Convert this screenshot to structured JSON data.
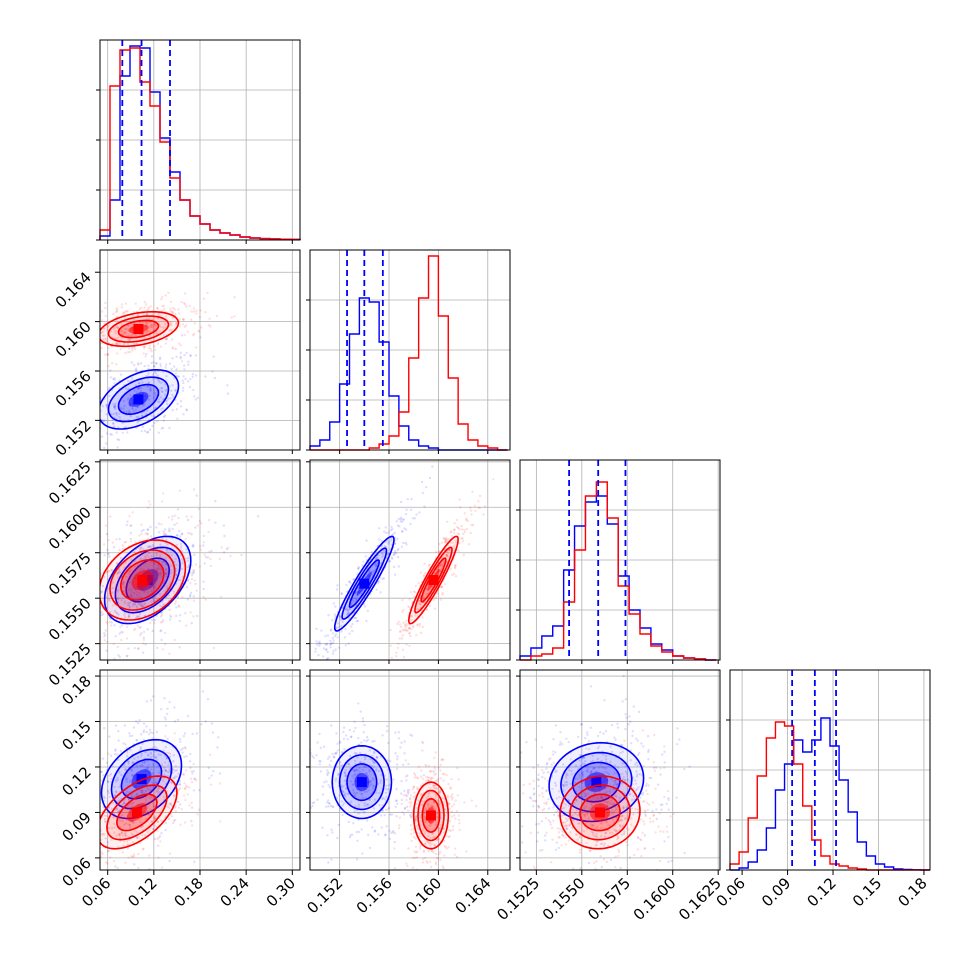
{
  "chart_data": {
    "type": "corner",
    "grid": true,
    "colors": {
      "series_a": "#0000ff",
      "series_b": "#ff0000"
    },
    "parameters": [
      {
        "ticks": [
          0.06,
          0.12,
          0.18,
          0.24,
          0.3
        ],
        "tick_labels": [
          "0.06",
          "0.12",
          "0.18",
          "0.24",
          "0.30"
        ],
        "range": [
          0.05,
          0.31
        ]
      },
      {
        "ticks": [
          0.152,
          0.156,
          0.16,
          0.164
        ],
        "tick_labels": [
          "0.152",
          "0.156",
          "0.160",
          "0.164"
        ],
        "range": [
          0.1496,
          0.1658
        ]
      },
      {
        "ticks": [
          0.1525,
          0.155,
          0.1575,
          0.16,
          0.1625
        ],
        "tick_labels": [
          "0.1525",
          "0.1550",
          "0.1575",
          "0.1600",
          "0.1625"
        ],
        "range": [
          0.1516,
          0.1626
        ]
      },
      {
        "ticks": [
          0.06,
          0.09,
          0.12,
          0.15,
          0.18
        ],
        "tick_labels": [
          "0.06",
          "0.09",
          "0.12",
          "0.15",
          "0.18"
        ],
        "range": [
          0.052,
          0.184
        ]
      }
    ],
    "diagonal": [
      {
        "bins": [
          0.05,
          0.063,
          0.076,
          0.089,
          0.102,
          0.115,
          0.128,
          0.141,
          0.154,
          0.167,
          0.18,
          0.193,
          0.206,
          0.219,
          0.232,
          0.245,
          0.258,
          0.271,
          0.284,
          0.297,
          0.31
        ],
        "series_a": [
          0.02,
          0.2,
          0.82,
          0.97,
          0.96,
          0.74,
          0.51,
          0.34,
          0.2,
          0.12,
          0.08,
          0.05,
          0.035,
          0.025,
          0.015,
          0.01,
          0.007,
          0.005,
          0.004,
          0.003
        ],
        "series_b": [
          0.05,
          0.77,
          0.95,
          0.96,
          0.79,
          0.67,
          0.49,
          0.31,
          0.2,
          0.12,
          0.08,
          0.05,
          0.035,
          0.025,
          0.015,
          0.01,
          0.007,
          0.005,
          0.004,
          0.003
        ],
        "quantiles": [
          0.079,
          0.104,
          0.141
        ]
      },
      {
        "bins": [
          0.1496,
          0.1504,
          0.1512,
          0.152,
          0.1528,
          0.1536,
          0.1544,
          0.1552,
          0.156,
          0.1568,
          0.1576,
          0.1584,
          0.1592,
          0.16,
          0.1608,
          0.1616,
          0.1624,
          0.1632,
          0.164,
          0.1648,
          0.1656
        ],
        "series_a": [
          0.02,
          0.05,
          0.14,
          0.33,
          0.58,
          0.76,
          0.74,
          0.54,
          0.27,
          0.12,
          0.05,
          0.02,
          0.01,
          0,
          0,
          0,
          0,
          0,
          0,
          0
        ],
        "series_b": [
          0,
          0,
          0,
          0,
          0,
          0,
          0.01,
          0.03,
          0.07,
          0.19,
          0.46,
          0.76,
          0.97,
          0.67,
          0.36,
          0.13,
          0.05,
          0.02,
          0.01,
          0
        ],
        "quantiles": [
          0.1526,
          0.154,
          0.1555
        ]
      },
      {
        "bins": [
          0.1516,
          0.1522,
          0.1528,
          0.1534,
          0.154,
          0.1546,
          0.1552,
          0.1558,
          0.1564,
          0.157,
          0.1576,
          0.1582,
          0.1588,
          0.1594,
          0.16,
          0.1606,
          0.1612,
          0.1618,
          0.1624
        ],
        "series_a": [
          0.02,
          0.06,
          0.12,
          0.17,
          0.45,
          0.67,
          0.79,
          0.82,
          0.68,
          0.42,
          0.25,
          0.16,
          0.08,
          0.05,
          0.02,
          0.01,
          0.005,
          0
        ],
        "series_b": [
          0,
          0.02,
          0.03,
          0.06,
          0.29,
          0.55,
          0.82,
          0.89,
          0.71,
          0.37,
          0.23,
          0.13,
          0.07,
          0.04,
          0.02,
          0.01,
          0.005,
          0
        ],
        "quantiles": [
          0.1543,
          0.1559,
          0.1574
        ]
      },
      {
        "bins": [
          0.052,
          0.058,
          0.064,
          0.07,
          0.076,
          0.082,
          0.088,
          0.094,
          0.1,
          0.106,
          0.112,
          0.118,
          0.124,
          0.13,
          0.136,
          0.142,
          0.148,
          0.154,
          0.16,
          0.166,
          0.172,
          0.178,
          0.184
        ],
        "series_a": [
          0,
          0.01,
          0.04,
          0.1,
          0.21,
          0.4,
          0.53,
          0.65,
          0.59,
          0.65,
          0.76,
          0.62,
          0.45,
          0.29,
          0.14,
          0.07,
          0.03,
          0.015,
          0.005,
          0.003,
          0.001,
          0
        ],
        "series_b": [
          0.03,
          0.09,
          0.26,
          0.47,
          0.66,
          0.74,
          0.72,
          0.53,
          0.32,
          0.15,
          0.07,
          0.03,
          0.02,
          0.01,
          0.005,
          0,
          0,
          0,
          0,
          0,
          0,
          0
        ],
        "quantiles": [
          0.093,
          0.108,
          0.122
        ]
      }
    ],
    "pairs": [
      {
        "row": 1,
        "col": 0,
        "series_a": {
          "center": [
            0.1,
            0.1537
          ],
          "sd": [
            0.026,
            0.0012
          ],
          "rho": 0.45
        },
        "series_b": {
          "center": [
            0.1,
            0.1594
          ],
          "sd": [
            0.026,
            0.0007
          ],
          "rho": 0.35
        }
      },
      {
        "row": 2,
        "col": 0,
        "series_a": {
          "center": [
            0.112,
            0.156
          ],
          "sd": [
            0.028,
            0.0012
          ],
          "rho": 0.45
        },
        "series_b": {
          "center": [
            0.105,
            0.156
          ],
          "sd": [
            0.028,
            0.0011
          ],
          "rho": 0.3
        }
      },
      {
        "row": 2,
        "col": 1,
        "series_a": {
          "center": [
            0.154,
            0.1558
          ],
          "sd": [
            0.0012,
            0.0013
          ],
          "rho": 0.93
        },
        "series_b": {
          "center": [
            0.1596,
            0.156
          ],
          "sd": [
            0.001,
            0.0012
          ],
          "rho": 0.93
        }
      },
      {
        "row": 3,
        "col": 0,
        "series_a": {
          "center": [
            0.104,
            0.112
          ],
          "sd": [
            0.026,
            0.013
          ],
          "rho": 0.35
        },
        "series_b": {
          "center": [
            0.098,
            0.09
          ],
          "sd": [
            0.026,
            0.012
          ],
          "rho": 0.55
        }
      },
      {
        "row": 3,
        "col": 1,
        "series_a": {
          "center": [
            0.1538,
            0.11
          ],
          "sd": [
            0.0012,
            0.012
          ],
          "rho": 0.0
        },
        "series_b": {
          "center": [
            0.1594,
            0.088
          ],
          "sd": [
            0.0007,
            0.011
          ],
          "rho": 0.0
        }
      },
      {
        "row": 3,
        "col": 2,
        "series_a": {
          "center": [
            0.1558,
            0.11
          ],
          "sd": [
            0.0013,
            0.013
          ],
          "rho": 0.1
        },
        "series_b": {
          "center": [
            0.156,
            0.09
          ],
          "sd": [
            0.0011,
            0.012
          ],
          "rho": 0.05
        }
      }
    ]
  }
}
